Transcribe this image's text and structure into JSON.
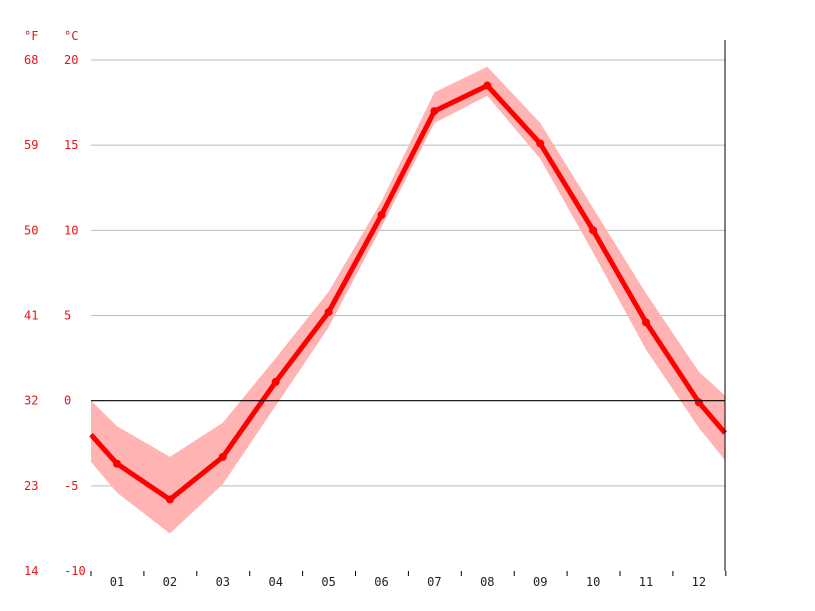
{
  "chart_data": {
    "type": "line",
    "title": "",
    "xlabel": "",
    "ylabel": "",
    "y_unit_left": "°F",
    "y_unit_right": "°C",
    "categories": [
      "01",
      "02",
      "03",
      "04",
      "05",
      "06",
      "07",
      "08",
      "09",
      "10",
      "11",
      "12"
    ],
    "c_ticks": [
      20,
      15,
      10,
      5,
      0,
      -5,
      -10
    ],
    "f_ticks": [
      68,
      59,
      50,
      41,
      32,
      23,
      14
    ],
    "ylim": [
      -10,
      20
    ],
    "series": [
      {
        "values": [
          -3.7,
          -5.8,
          -3.3,
          1.1,
          5.2,
          10.9,
          17.0,
          18.5,
          15.1,
          10.0,
          4.6,
          -0.1
        ],
        "band_upper": [
          -1.5,
          -3.3,
          -1.3,
          2.5,
          6.4,
          11.7,
          18.1,
          19.6,
          16.3,
          11.3,
          6.3,
          1.7
        ],
        "band_lower": [
          -5.4,
          -7.8,
          -4.9,
          -0.3,
          4.3,
          10.2,
          16.3,
          17.9,
          14.2,
          8.7,
          3.0,
          -1.6
        ],
        "start_value": -2.0,
        "end_value": -1.9,
        "band_start": [
          0.0,
          -3.6
        ],
        "band_end": [
          0.3,
          -3.5
        ]
      }
    ],
    "grid": true,
    "zero_line": true,
    "colors": {
      "line": "#ff0000",
      "band": "#ffb3b3",
      "tick_text": "#e8141b",
      "grid": "#bbbbbb",
      "axis": "#000000"
    }
  }
}
